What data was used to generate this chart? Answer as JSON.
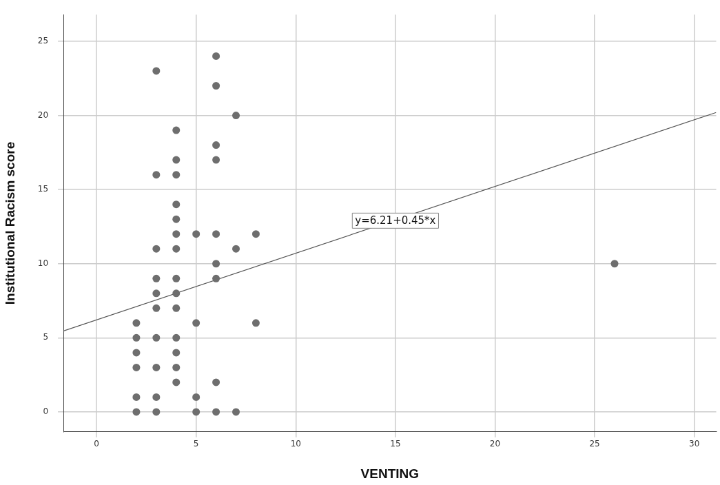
{
  "chart_data": {
    "type": "scatter",
    "xlabel": "VENTING",
    "ylabel": "Institutional Racism score",
    "xlim": [
      -1.66,
      31.1
    ],
    "ylim": [
      -1.34,
      26.8
    ],
    "xticks": [
      0,
      5,
      10,
      15,
      20,
      25,
      30
    ],
    "yticks": [
      0,
      5,
      10,
      15,
      20,
      25
    ],
    "grid": true,
    "legend": false,
    "series": [
      {
        "color": "#6e6e6e",
        "marker": "circle",
        "x": [
          2,
          2,
          2,
          2,
          2,
          2,
          3,
          3,
          3,
          3,
          3,
          3,
          3,
          3,
          3,
          3,
          4,
          4,
          4,
          4,
          4,
          4,
          4,
          4,
          4,
          4,
          4,
          4,
          4,
          4,
          5,
          5,
          5,
          5,
          6,
          6,
          6,
          6,
          6,
          6,
          6,
          6,
          6,
          7,
          7,
          7,
          8,
          8,
          26
        ],
        "values": [
          6,
          5,
          4,
          3,
          1,
          0,
          23,
          16,
          11,
          9,
          8,
          7,
          5,
          3,
          1,
          0,
          19,
          17,
          16,
          14,
          13,
          12,
          11,
          9,
          8,
          7,
          5,
          4,
          3,
          2,
          12,
          6,
          1,
          0,
          24,
          22,
          18,
          17,
          12,
          10,
          9,
          2,
          0,
          20,
          11,
          0,
          12,
          6,
          10
        ]
      },
      {
        "type": "line",
        "color": "#555555",
        "marker": "none",
        "x": [
          -1.66,
          31.1
        ],
        "values": [
          5.46,
          20.2
        ]
      }
    ],
    "annotations": [
      {
        "text": "y=6.21+0.45*x",
        "x": 15,
        "y": 12.9
      }
    ]
  }
}
